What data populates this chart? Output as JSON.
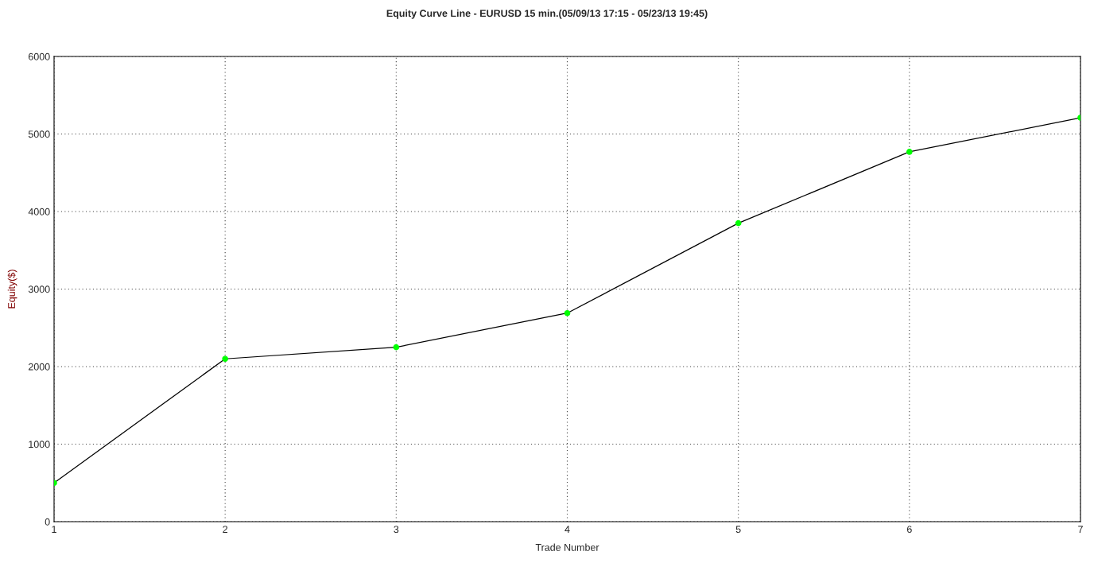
{
  "chart_data": {
    "type": "line",
    "title": "Equity Curve Line - EURUSD 15 min.(05/09/13 17:15 - 05/23/13 19:45)",
    "xlabel": "Trade Number",
    "ylabel": "Equity($)",
    "x": [
      1,
      2,
      3,
      4,
      5,
      6,
      7
    ],
    "series": [
      {
        "color": "#00ff00",
        "values": [
          500,
          2100,
          2250,
          2690,
          3850,
          4770,
          5210
        ]
      }
    ],
    "xlim": [
      1,
      7
    ],
    "xticks": [
      1,
      2,
      3,
      4,
      5,
      6,
      7
    ],
    "ylim": [
      0,
      6000
    ],
    "yticks": [
      0,
      1000,
      2000,
      3000,
      4000,
      5000,
      6000
    ],
    "grid": true,
    "marker": "circle",
    "line_style": "solid",
    "legend": false
  }
}
